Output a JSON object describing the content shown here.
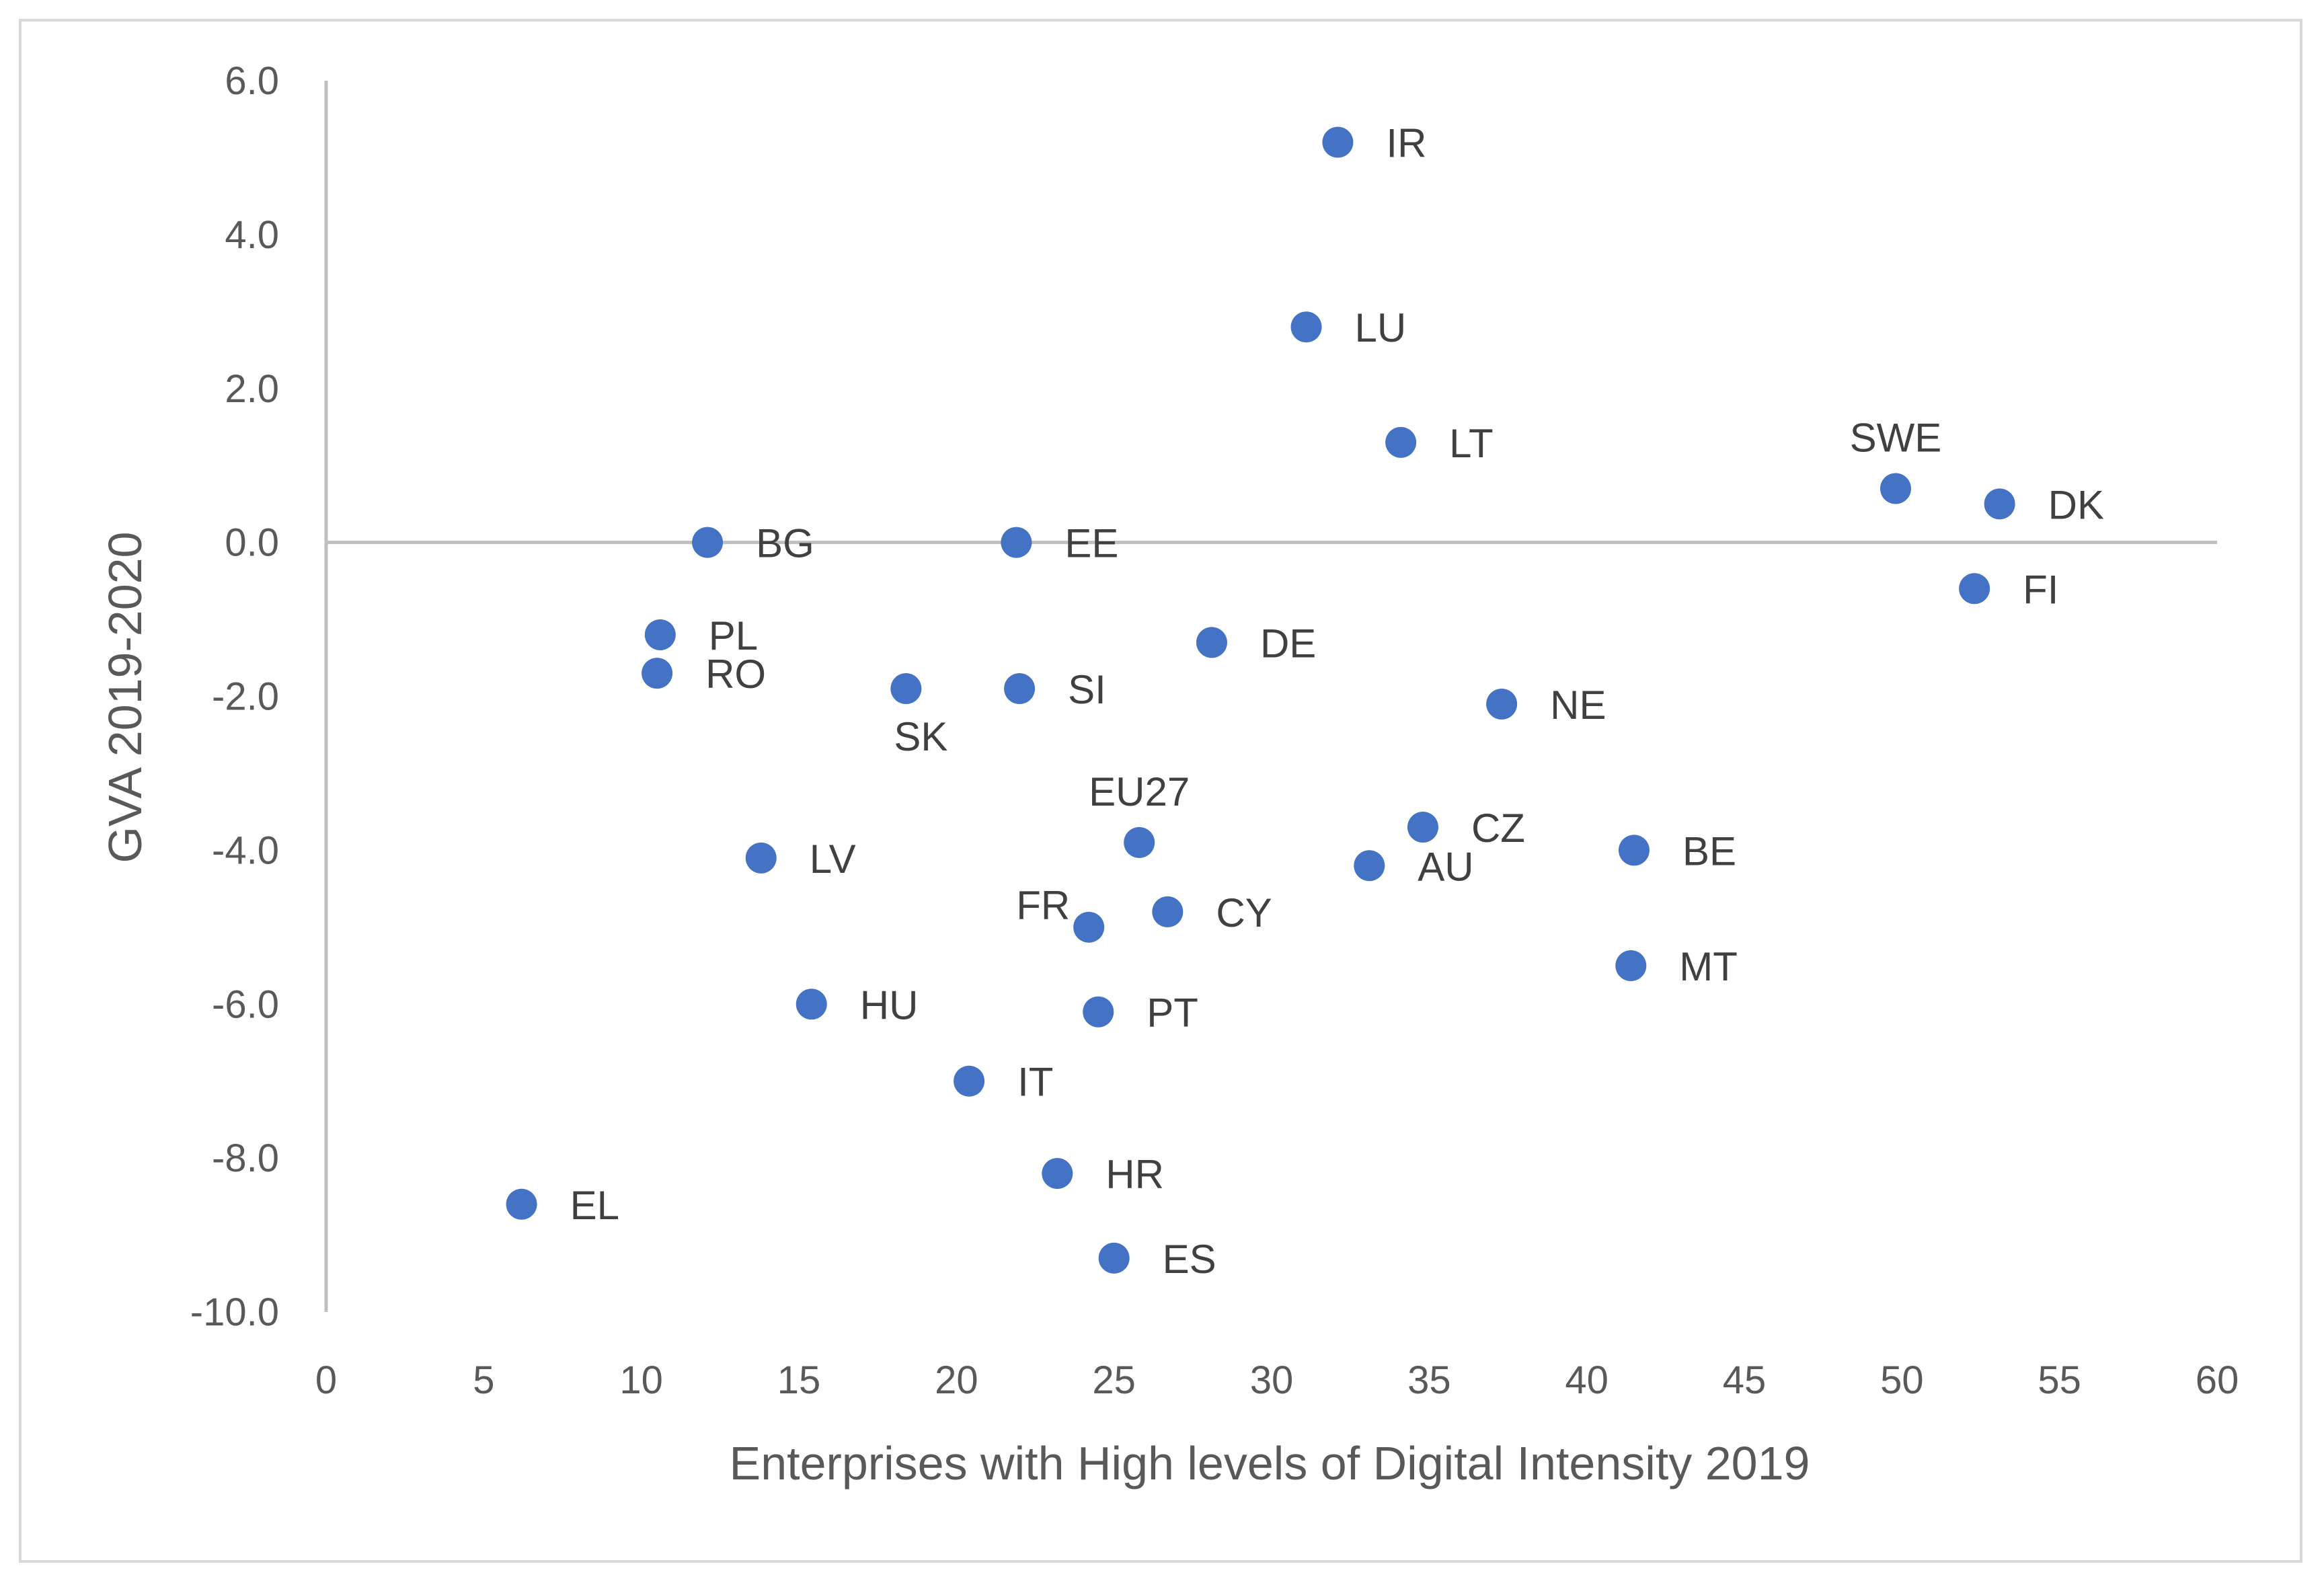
{
  "chart_data": {
    "type": "scatter",
    "title": "",
    "xlabel": "Enterprises with High levels of Digital Intensity 2019",
    "ylabel": "GVA 2019-2020",
    "xlim": [
      0,
      60
    ],
    "ylim": [
      -10,
      6
    ],
    "x_ticks": [
      0,
      5,
      10,
      15,
      20,
      25,
      30,
      35,
      40,
      45,
      50,
      55,
      60
    ],
    "x_tick_labels": [
      "0",
      "5",
      "10",
      "15",
      "20",
      "25",
      "30",
      "35",
      "40",
      "45",
      "50",
      "55",
      "60"
    ],
    "y_ticks": [
      6,
      4,
      2,
      0,
      -2,
      -4,
      -6,
      -8,
      -10
    ],
    "y_tick_labels": [
      "6.0",
      "4.0",
      "2.0",
      "0.0",
      "-2.0",
      "-4.0",
      "-6.0",
      "-8.0",
      "-10.0"
    ],
    "grid": false,
    "legend": "none",
    "marker_color": "#4472c4",
    "points": [
      {
        "label": "IR",
        "x": 32.1,
        "y": 5.2,
        "label_pos": "right"
      },
      {
        "label": "LU",
        "x": 31.1,
        "y": 2.8,
        "label_pos": "right"
      },
      {
        "label": "LT",
        "x": 34.1,
        "y": 1.3,
        "label_pos": "right"
      },
      {
        "label": "SWE",
        "x": 49.8,
        "y": 0.7,
        "label_pos": "above"
      },
      {
        "label": "DK",
        "x": 53.1,
        "y": 0.5,
        "label_pos": "right"
      },
      {
        "label": "FI",
        "x": 52.3,
        "y": -0.6,
        "label_pos": "right"
      },
      {
        "label": "BG",
        "x": 12.1,
        "y": 0.0,
        "label_pos": "right"
      },
      {
        "label": "EE",
        "x": 21.9,
        "y": 0.0,
        "label_pos": "right"
      },
      {
        "label": "PL",
        "x": 10.6,
        "y": -1.2,
        "label_pos": "right"
      },
      {
        "label": "RO",
        "x": 10.5,
        "y": -1.7,
        "label_pos": "right"
      },
      {
        "label": "DE",
        "x": 28.1,
        "y": -1.3,
        "label_pos": "right"
      },
      {
        "label": "SK",
        "x": 18.4,
        "y": -1.9,
        "label_pos": "below"
      },
      {
        "label": "SI",
        "x": 22.0,
        "y": -1.9,
        "label_pos": "right"
      },
      {
        "label": "NE",
        "x": 37.3,
        "y": -2.1,
        "label_pos": "right"
      },
      {
        "label": "EU27",
        "x": 25.8,
        "y": -3.9,
        "label_pos": "above"
      },
      {
        "label": "CZ",
        "x": 34.8,
        "y": -3.7,
        "label_pos": "right"
      },
      {
        "label": "AU",
        "x": 33.1,
        "y": -4.2,
        "label_pos": "right"
      },
      {
        "label": "BE",
        "x": 41.5,
        "y": -4.0,
        "label_pos": "right"
      },
      {
        "label": "LV",
        "x": 13.8,
        "y": -4.1,
        "label_pos": "right"
      },
      {
        "label": "FR",
        "x": 24.2,
        "y": -5.0,
        "label_pos": "left"
      },
      {
        "label": "CY",
        "x": 26.7,
        "y": -4.8,
        "label_pos": "right"
      },
      {
        "label": "MT",
        "x": 41.4,
        "y": -5.5,
        "label_pos": "right"
      },
      {
        "label": "HU",
        "x": 15.4,
        "y": -6.0,
        "label_pos": "right"
      },
      {
        "label": "PT",
        "x": 24.5,
        "y": -6.1,
        "label_pos": "right"
      },
      {
        "label": "IT",
        "x": 20.4,
        "y": -7.0,
        "label_pos": "right"
      },
      {
        "label": "HR",
        "x": 23.2,
        "y": -8.2,
        "label_pos": "right"
      },
      {
        "label": "EL",
        "x": 6.2,
        "y": -8.6,
        "label_pos": "right"
      },
      {
        "label": "ES",
        "x": 25.0,
        "y": -9.3,
        "label_pos": "right"
      }
    ]
  }
}
